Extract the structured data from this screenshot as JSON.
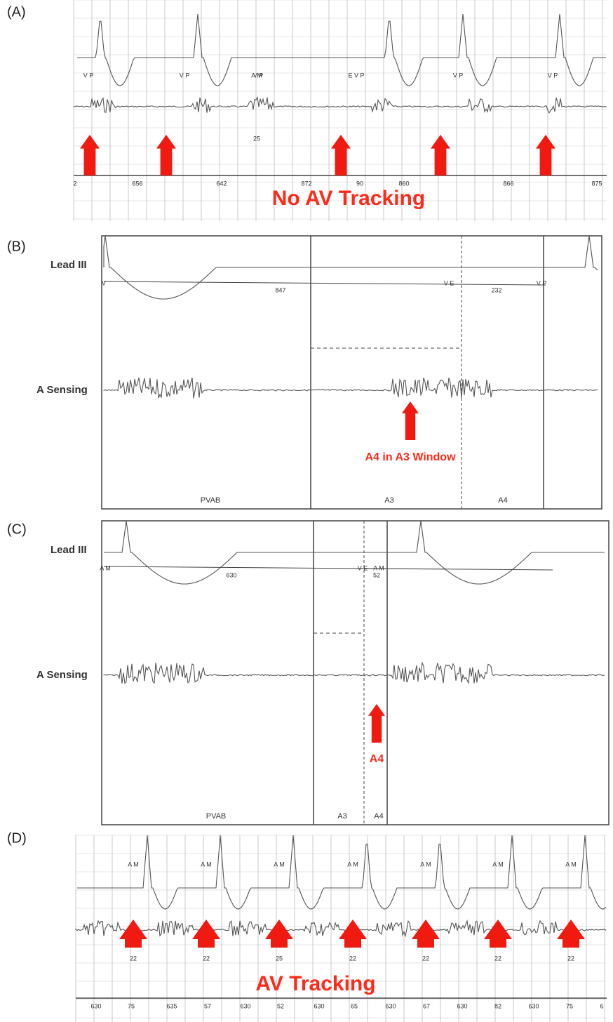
{
  "panels": [
    {
      "label": "(A)",
      "annotation": "No AV Tracking",
      "event_marks": [
        "V P",
        "V P",
        "A M",
        "V P",
        "E V P",
        "V P",
        "V P"
      ],
      "marker_labels": [
        25
      ],
      "interval_labels": [
        2,
        656,
        642,
        872,
        90,
        860,
        866,
        875
      ]
    },
    {
      "label": "(B)",
      "lead_label": "Lead III",
      "sensing_label": "A Sensing",
      "annotation": "A4 in A3 Window",
      "event_marks": [
        "V",
        "V E",
        "V P"
      ],
      "interval_labels": [
        847,
        232
      ],
      "window_labels": [
        "PVAB",
        "A3",
        "A4"
      ]
    },
    {
      "label": "(C)",
      "lead_label": "Lead III",
      "sensing_label": "A Sensing",
      "annotation": "A4",
      "event_marks": [
        "A M",
        "V E",
        "A M"
      ],
      "interval_labels": [
        630,
        52
      ],
      "window_labels": [
        "PVAB",
        "A3",
        "A4"
      ]
    },
    {
      "label": "(D)",
      "annotation": "AV Tracking",
      "event_marks": [
        "A M",
        "A M",
        "A M",
        "A M",
        "A M",
        "A M",
        "A M"
      ],
      "marker_labels": [
        22,
        22,
        25,
        22,
        22,
        22,
        22
      ],
      "interval_labels": [
        630,
        75,
        635,
        57,
        630,
        52,
        630,
        65,
        630,
        67,
        630,
        82,
        630,
        75,
        6
      ]
    }
  ]
}
